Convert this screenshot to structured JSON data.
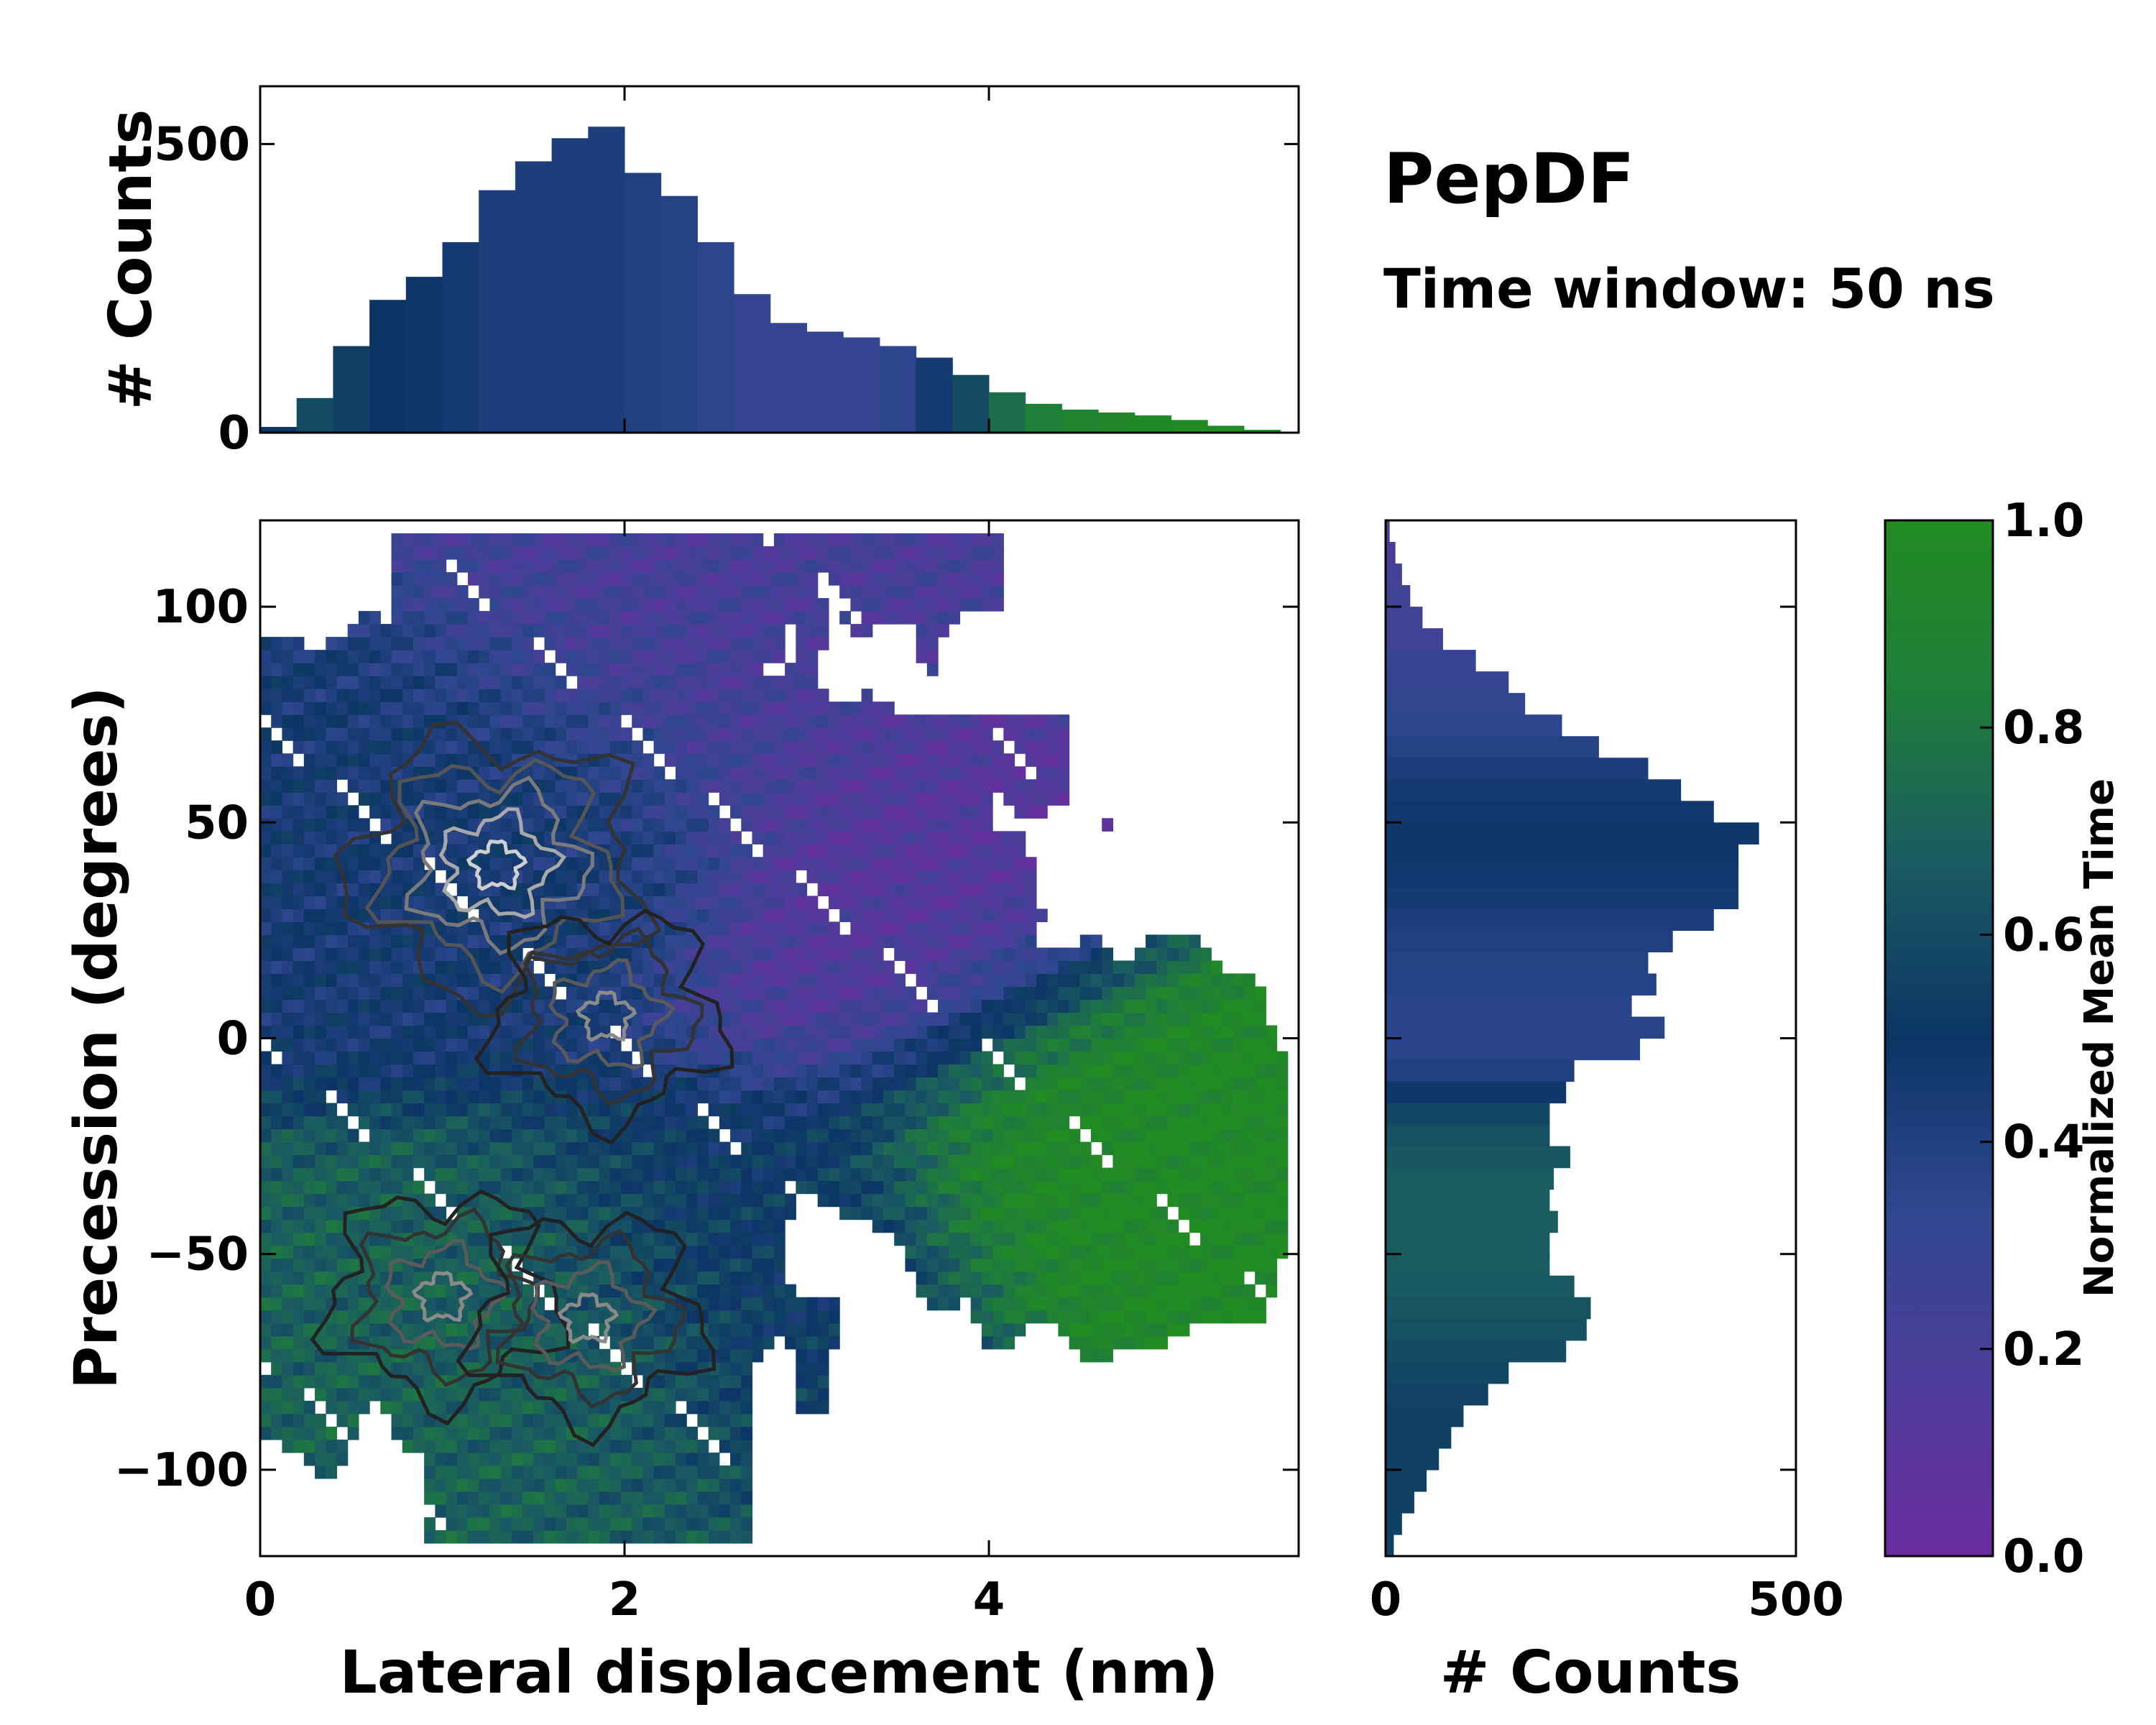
{
  "chart_data": {
    "type": "heatmap",
    "title": "PepDF",
    "subtitle": "Time window: 50 ns",
    "main": {
      "xlabel": "Lateral displacement (nm)",
      "ylabel": "Precession (degrees)",
      "xlim": [
        0,
        5.7
      ],
      "ylim": [
        -120,
        120
      ],
      "xticks": [
        0,
        2,
        4
      ],
      "yticks": [
        -100,
        -50,
        0,
        50,
        100
      ],
      "color_regions": [
        {
          "name": "upper-left cluster",
          "x": 1.5,
          "y": 45,
          "mean_time": 0.45
        },
        {
          "name": "upper band",
          "x": 2.5,
          "y": 90,
          "mean_time": 0.2
        },
        {
          "name": "right purple",
          "x": 3.5,
          "y": 30,
          "mean_time": 0.12
        },
        {
          "name": "right green lobe",
          "x": 4.6,
          "y": -25,
          "mean_time": 0.98
        },
        {
          "name": "lower-left",
          "x": 1.6,
          "y": -75,
          "mean_time": 0.7
        },
        {
          "name": "lower-middle",
          "x": 2.8,
          "y": -55,
          "mean_time": 0.5
        }
      ],
      "contour_peaks": [
        {
          "x": 1.3,
          "y": 40,
          "level": "high"
        },
        {
          "x": 1.9,
          "y": 5,
          "level": "medium"
        },
        {
          "x": 1.0,
          "y": -60,
          "level": "medium"
        },
        {
          "x": 1.8,
          "y": -65,
          "level": "medium"
        }
      ]
    },
    "top_histogram": {
      "xlabel": "",
      "ylabel": "# Counts",
      "ylim": [
        0,
        600
      ],
      "yticks": [
        0,
        500
      ],
      "x": [
        0.0,
        0.2,
        0.4,
        0.6,
        0.8,
        1.0,
        1.2,
        1.4,
        1.6,
        1.8,
        2.0,
        2.2,
        2.4,
        2.6,
        2.8,
        3.0,
        3.2,
        3.4,
        3.6,
        3.8,
        4.0,
        4.2,
        4.4,
        4.6,
        4.8,
        5.0,
        5.2,
        5.4,
        5.6
      ],
      "counts": [
        10,
        60,
        150,
        230,
        270,
        330,
        420,
        470,
        510,
        530,
        450,
        410,
        330,
        240,
        190,
        175,
        165,
        150,
        130,
        100,
        70,
        50,
        40,
        35,
        30,
        22,
        12,
        5,
        0
      ],
      "mean_time": [
        0.5,
        0.6,
        0.55,
        0.5,
        0.48,
        0.45,
        0.42,
        0.42,
        0.42,
        0.42,
        0.4,
        0.38,
        0.35,
        0.3,
        0.28,
        0.3,
        0.3,
        0.35,
        0.45,
        0.6,
        0.75,
        0.85,
        0.9,
        0.95,
        0.97,
        0.98,
        0.98,
        0.98,
        0.98
      ]
    },
    "right_histogram": {
      "xlabel": "# Counts",
      "ylabel": "",
      "xlim": [
        0,
        500
      ],
      "xticks": [
        0,
        500
      ],
      "y": [
        117.5,
        112.5,
        107.5,
        102.5,
        97.5,
        92.5,
        87.5,
        82.5,
        77.5,
        72.5,
        67.5,
        62.5,
        57.5,
        52.5,
        47.5,
        42.5,
        37.5,
        32.5,
        27.5,
        22.5,
        17.5,
        12.5,
        7.5,
        2.5,
        -2.5,
        -7.5,
        -12.5,
        -17.5,
        -22.5,
        -27.5,
        -32.5,
        -37.5,
        -42.5,
        -47.5,
        -52.5,
        -57.5,
        -62.5,
        -67.5,
        -72.5,
        -77.5,
        -82.5,
        -87.5,
        -92.5,
        -97.5,
        -102.5,
        -107.5,
        -112.5,
        -117.5
      ],
      "counts": [
        5,
        12,
        20,
        30,
        45,
        70,
        110,
        150,
        170,
        215,
        260,
        320,
        360,
        400,
        455,
        430,
        430,
        430,
        400,
        350,
        320,
        330,
        300,
        340,
        310,
        230,
        220,
        200,
        200,
        225,
        205,
        200,
        210,
        200,
        200,
        230,
        250,
        245,
        220,
        150,
        125,
        95,
        80,
        65,
        50,
        35,
        20,
        10
      ],
      "mean_time": [
        0.2,
        0.2,
        0.22,
        0.25,
        0.25,
        0.25,
        0.28,
        0.3,
        0.33,
        0.35,
        0.38,
        0.42,
        0.45,
        0.47,
        0.48,
        0.48,
        0.47,
        0.45,
        0.42,
        0.4,
        0.38,
        0.37,
        0.36,
        0.36,
        0.36,
        0.4,
        0.48,
        0.58,
        0.62,
        0.65,
        0.67,
        0.68,
        0.68,
        0.68,
        0.67,
        0.66,
        0.64,
        0.62,
        0.6,
        0.58,
        0.56,
        0.55,
        0.55,
        0.55,
        0.55,
        0.55,
        0.55,
        0.55
      ]
    },
    "colorbar": {
      "label": "Normalized Mean Time",
      "range": [
        0.0,
        1.0
      ],
      "ticks": [
        "0.0",
        "0.2",
        "0.4",
        "0.6",
        "0.8",
        "1.0"
      ],
      "colors": [
        "#6a2c9e",
        "#4e3c9a",
        "#2f4790",
        "#0c3565",
        "#1a5a62",
        "#1f7d3a",
        "#228b22"
      ]
    }
  }
}
